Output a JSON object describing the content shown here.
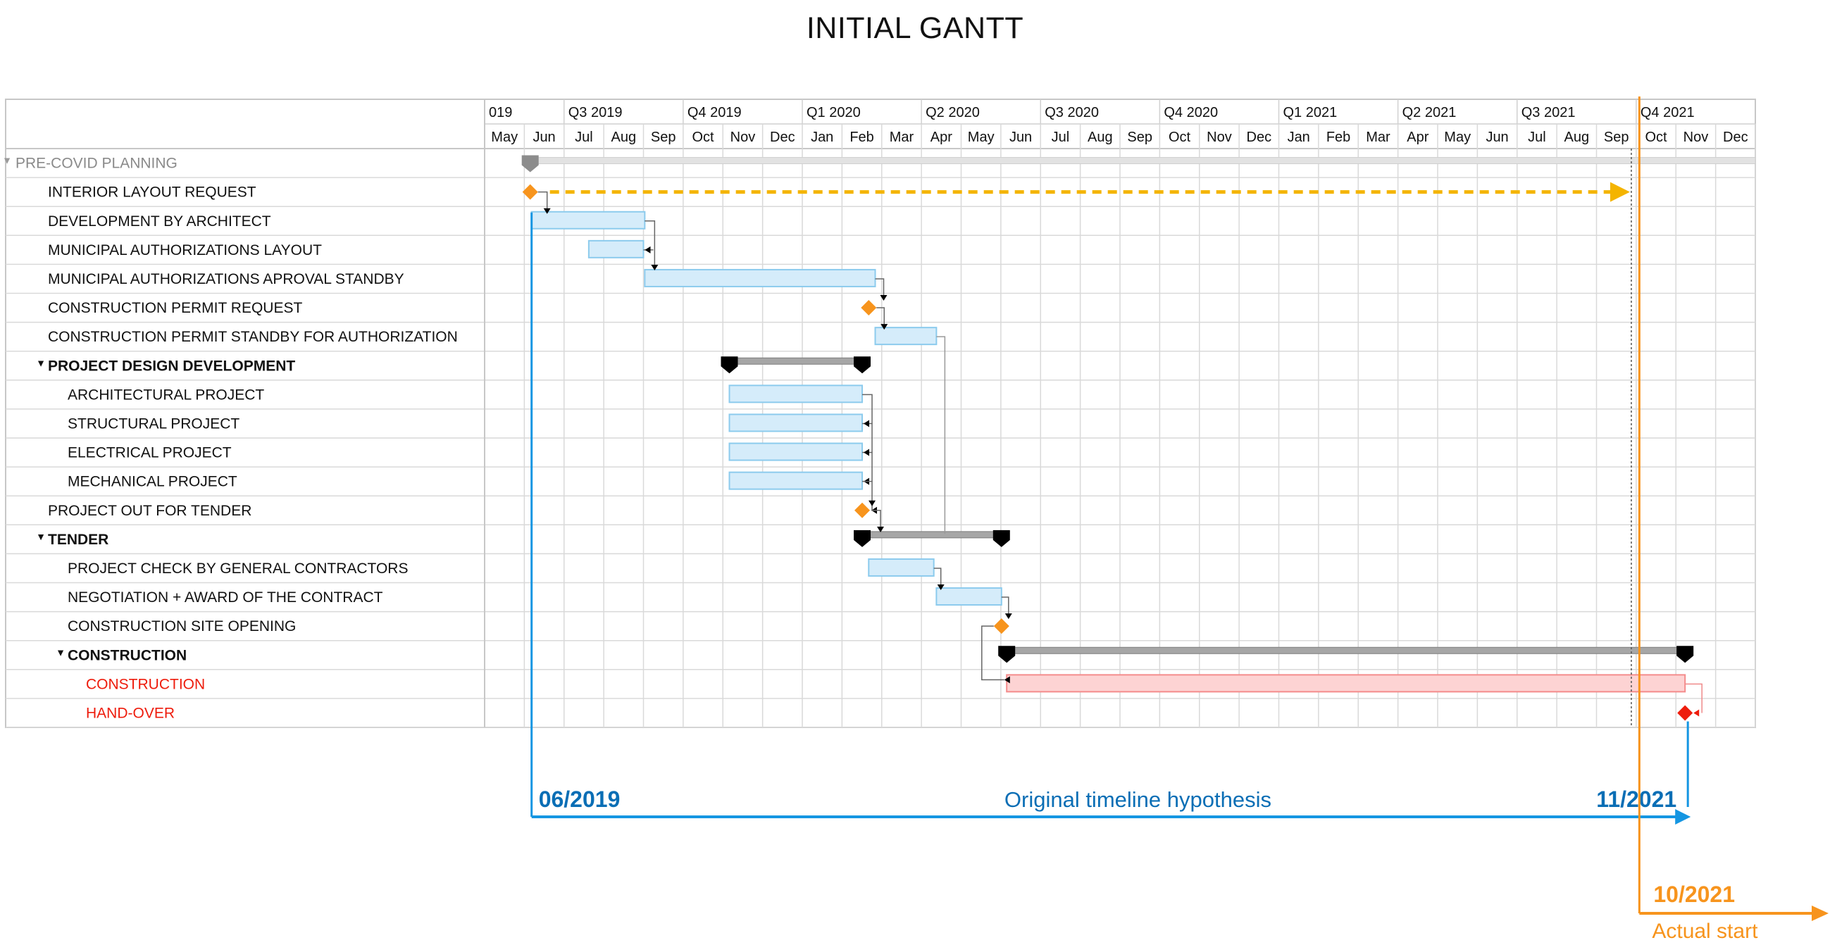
{
  "title": "INITIAL GANTT",
  "chart_data": {
    "type": "gantt",
    "title": "INITIAL GANTT",
    "quarters": [
      "019",
      "Q3 2019",
      "Q4 2019",
      "Q1 2020",
      "Q2 2020",
      "Q3 2020",
      "Q4 2020",
      "Q1 2021",
      "Q2 2021",
      "Q3 2021",
      "Q4 2021"
    ],
    "months": [
      "May",
      "Jun",
      "Jul",
      "Aug",
      "Sep",
      "Oct",
      "Nov",
      "Dec",
      "Jan",
      "Feb",
      "Mar",
      "Apr",
      "May",
      "Jun",
      "Jul",
      "Aug",
      "Sep",
      "Oct",
      "Nov",
      "Dec",
      "Jan",
      "Feb",
      "Mar",
      "Apr",
      "May",
      "Jun",
      "Jul",
      "Aug",
      "Sep",
      "Oct",
      "Nov",
      "Dec"
    ],
    "x_start": "2019-05-01",
    "x_end": "2021-12-31",
    "tasks": [
      {
        "name": "PRE-COVID PLANNING",
        "kind": "group",
        "level": 0,
        "style": "muted",
        "start": "2019-06-05",
        "end": "2021-12-31"
      },
      {
        "name": "INTERIOR LAYOUT REQUEST",
        "kind": "milestone",
        "level": 1,
        "style": "normal",
        "date": "2019-06-05"
      },
      {
        "name": "DEVELOPMENT BY ARCHITECT",
        "kind": "task",
        "level": 1,
        "style": "normal",
        "start": "2019-06-06",
        "end": "2019-09-01"
      },
      {
        "name": "MUNICIPAL AUTHORIZATIONS LAYOUT",
        "kind": "task",
        "level": 1,
        "style": "normal",
        "start": "2019-07-20",
        "end": "2019-08-31"
      },
      {
        "name": "MUNICIPAL AUTHORIZATIONS  APROVAL STANDBY",
        "kind": "task",
        "level": 1,
        "style": "normal",
        "start": "2019-09-01",
        "end": "2020-02-25"
      },
      {
        "name": "CONSTRUCTION PERMIT REQUEST",
        "kind": "milestone",
        "level": 1,
        "style": "normal",
        "date": "2020-02-20"
      },
      {
        "name": "CONSTRUCTION PERMIT STANDBY FOR AUTHORIZATION",
        "kind": "task",
        "level": 1,
        "style": "normal",
        "start": "2020-02-25",
        "end": "2020-04-12"
      },
      {
        "name": "PROJECT DESIGN DEVELOPMENT",
        "kind": "group",
        "level": 1,
        "style": "bold",
        "start": "2019-11-05",
        "end": "2020-02-15"
      },
      {
        "name": "ARCHITECTURAL PROJECT",
        "kind": "task",
        "level": 2,
        "style": "normal",
        "start": "2019-11-05",
        "end": "2020-02-15"
      },
      {
        "name": "STRUCTURAL PROJECT",
        "kind": "task",
        "level": 2,
        "style": "normal",
        "start": "2019-11-05",
        "end": "2020-02-15"
      },
      {
        "name": "ELECTRICAL PROJECT",
        "kind": "task",
        "level": 2,
        "style": "normal",
        "start": "2019-11-05",
        "end": "2020-02-15"
      },
      {
        "name": "MECHANICAL PROJECT",
        "kind": "task",
        "level": 2,
        "style": "normal",
        "start": "2019-11-05",
        "end": "2020-02-15"
      },
      {
        "name": "PROJECT OUT FOR TENDER",
        "kind": "milestone",
        "level": 1,
        "style": "normal",
        "date": "2020-02-15"
      },
      {
        "name": "TENDER",
        "kind": "group",
        "level": 1,
        "style": "bold",
        "start": "2020-02-15",
        "end": "2020-06-01"
      },
      {
        "name": "PROJECT CHECK BY GENERAL CONTRACTORS",
        "kind": "task",
        "level": 2,
        "style": "normal",
        "start": "2020-02-20",
        "end": "2020-04-10"
      },
      {
        "name": "NEGOTIATION + AWARD OF THE CONTRACT",
        "kind": "task",
        "level": 2,
        "style": "normal",
        "start": "2020-04-12",
        "end": "2020-06-01"
      },
      {
        "name": "CONSTRUCTION SITE OPENING",
        "kind": "milestone",
        "level": 2,
        "style": "normal",
        "date": "2020-06-01"
      },
      {
        "name": "CONSTRUCTION",
        "kind": "group",
        "level": 2,
        "style": "bold",
        "start": "2020-06-05",
        "end": "2021-11-08"
      },
      {
        "name": "CONSTRUCTION",
        "kind": "task",
        "level": 3,
        "style": "red",
        "start": "2020-06-05",
        "end": "2021-11-08"
      },
      {
        "name": "HAND-OVER",
        "kind": "milestone",
        "level": 3,
        "style": "red",
        "date": "2021-11-08"
      }
    ],
    "delay_arrow": {
      "from": "2019-06-05",
      "to": "2021-10-01"
    },
    "today_line": "2021-10-01",
    "actual_start_line": "2021-10-05",
    "annotations": {
      "original_start": "06/2019",
      "original_end": "11/2021",
      "original_label": "Original timeline hypothesis",
      "actual_date": "10/2021",
      "actual_label": "Actual start"
    },
    "colors": {
      "task_fill": "#d5ecfa",
      "task_stroke": "#8ccbed",
      "milestone": "#f7941d",
      "red_task_fill": "#fdd3d3",
      "red_task_stroke": "#f48c8c",
      "red_text": "#ee1c0c",
      "group_bar": "#a6a6a6",
      "timeline_blue": "#1596e2",
      "label_blue": "#0a6eb5",
      "actual_orange": "#f7941d",
      "dash_arrow": "#f4b400"
    }
  }
}
